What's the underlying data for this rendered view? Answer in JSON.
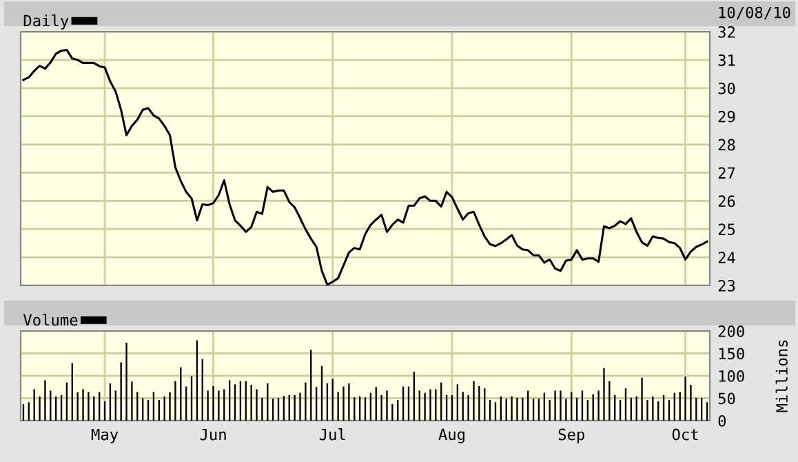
{
  "chart_data": [
    {
      "type": "line",
      "categories": [
        null,
        null,
        null,
        null,
        null,
        null,
        null,
        null,
        null,
        null,
        null,
        null,
        null,
        null,
        null,
        null,
        null,
        null,
        null,
        null,
        null,
        null,
        null,
        null,
        null,
        null,
        null,
        null,
        null,
        null,
        null,
        null,
        null,
        null,
        null,
        null,
        null,
        null,
        null,
        null,
        null,
        null,
        null,
        null,
        null,
        null,
        null,
        null,
        null,
        null,
        null,
        null,
        null,
        null,
        null,
        null,
        null,
        null,
        null,
        null,
        null,
        null,
        null,
        null,
        null,
        null,
        null,
        null,
        null,
        null,
        null,
        null,
        null,
        null,
        null,
        null,
        null,
        null,
        null,
        null,
        null,
        null,
        null,
        null,
        null,
        null,
        null,
        null,
        null,
        null,
        null,
        null,
        null,
        null,
        null,
        null,
        null,
        null,
        null,
        null,
        null,
        null,
        null,
        null,
        null,
        null,
        null,
        null,
        null,
        null,
        null,
        null,
        null,
        null,
        null,
        null,
        null,
        null,
        null,
        null,
        null,
        null,
        null,
        null,
        null,
        null,
        null
      ],
      "series": [
        {
          "name": "Daily",
          "color": "#000000",
          "values": [
            30.29,
            30.38,
            30.61,
            30.79,
            30.69,
            30.91,
            31.22,
            31.33,
            31.35,
            31.05,
            31.0,
            30.89,
            30.89,
            30.89,
            30.78,
            30.73,
            30.24,
            29.88,
            29.23,
            28.33,
            28.66,
            28.88,
            29.23,
            29.29,
            29.03,
            28.92,
            28.66,
            28.33,
            27.19,
            26.71,
            26.32,
            26.09,
            25.31,
            25.88,
            25.85,
            25.92,
            26.21,
            26.73,
            25.88,
            25.31,
            25.12,
            24.9,
            25.07,
            25.61,
            25.54,
            26.49,
            26.32,
            26.37,
            26.37,
            25.96,
            25.77,
            25.39,
            24.99,
            24.66,
            24.37,
            23.52,
            23.03,
            23.13,
            23.26,
            23.71,
            24.17,
            24.33,
            24.28,
            24.82,
            25.15,
            25.34,
            25.51,
            24.9,
            25.15,
            25.34,
            25.23,
            25.83,
            25.83,
            26.09,
            26.16,
            26.0,
            26.0,
            25.8,
            26.32,
            26.13,
            25.72,
            25.34,
            25.56,
            25.61,
            25.15,
            24.74,
            24.46,
            24.4,
            24.5,
            24.63,
            24.79,
            24.41,
            24.28,
            24.25,
            24.07,
            24.07,
            23.81,
            23.92,
            23.6,
            23.52,
            23.88,
            23.92,
            24.25,
            23.92,
            23.96,
            23.96,
            23.84,
            25.1,
            25.03,
            25.12,
            25.28,
            25.18,
            25.38,
            24.9,
            24.53,
            24.41,
            24.74,
            24.69,
            24.66,
            24.54,
            24.5,
            24.33,
            23.92,
            24.2,
            24.37,
            24.45,
            24.56
          ]
        }
      ],
      "ylim": [
        23,
        32
      ],
      "yticks": [
        23,
        24,
        25,
        26,
        27,
        28,
        29,
        30,
        31,
        32
      ],
      "grid": true,
      "legend": "top left",
      "tick_labels": "y",
      "annotations": [
        "10/08/10"
      ]
    },
    {
      "type": "bar",
      "categories": [
        null,
        null,
        null,
        null,
        null,
        null,
        null,
        null,
        null,
        null,
        null,
        null,
        null,
        null,
        null,
        "May",
        null,
        null,
        null,
        null,
        null,
        null,
        null,
        null,
        null,
        null,
        null,
        null,
        null,
        null,
        null,
        null,
        null,
        null,
        null,
        "Jun",
        null,
        null,
        null,
        null,
        null,
        null,
        null,
        null,
        null,
        null,
        null,
        null,
        null,
        null,
        null,
        null,
        null,
        null,
        null,
        null,
        null,
        "Jul",
        null,
        null,
        null,
        null,
        null,
        null,
        null,
        null,
        null,
        null,
        null,
        null,
        null,
        null,
        null,
        null,
        null,
        null,
        null,
        null,
        null,
        "Aug",
        null,
        null,
        null,
        null,
        null,
        null,
        null,
        null,
        null,
        null,
        null,
        null,
        null,
        null,
        null,
        null,
        null,
        null,
        null,
        null,
        null,
        "Sep",
        null,
        null,
        null,
        null,
        null,
        null,
        null,
        null,
        null,
        null,
        null,
        null,
        null,
        null,
        null,
        null,
        null,
        null,
        null,
        null,
        "Oct",
        null,
        null,
        null,
        null
      ],
      "series": [
        {
          "name": "Volume",
          "color": "#000000",
          "values": [
            37,
            41,
            70,
            54,
            90,
            67,
            54,
            57,
            85,
            128,
            63,
            70,
            64,
            54,
            64,
            43,
            83,
            67,
            130,
            174,
            87,
            64,
            50,
            46,
            64,
            46,
            54,
            63,
            88,
            119,
            76,
            99,
            179,
            137,
            67,
            77,
            67,
            70,
            90,
            81,
            88,
            88,
            80,
            70,
            51,
            83,
            49,
            51,
            55,
            57,
            57,
            62,
            85,
            158,
            75,
            122,
            83,
            93,
            64,
            76,
            83,
            52,
            54,
            52,
            62,
            75,
            57,
            67,
            37,
            46,
            76,
            76,
            109,
            67,
            62,
            70,
            70,
            85,
            57,
            57,
            81,
            64,
            57,
            88,
            77,
            72,
            46,
            41,
            54,
            49,
            54,
            51,
            51,
            67,
            49,
            49,
            62,
            46,
            67,
            67,
            49,
            64,
            51,
            67,
            46,
            59,
            67,
            117,
            88,
            57,
            46,
            72,
            51,
            54,
            96,
            46,
            54,
            43,
            57,
            46,
            62,
            64,
            98,
            80,
            51,
            51,
            41
          ]
        }
      ],
      "ylim": [
        0,
        200
      ],
      "yticks": [
        0,
        50,
        100,
        150,
        200
      ],
      "ylabel": "Millions",
      "grid": true,
      "legend": "top left"
    }
  ]
}
